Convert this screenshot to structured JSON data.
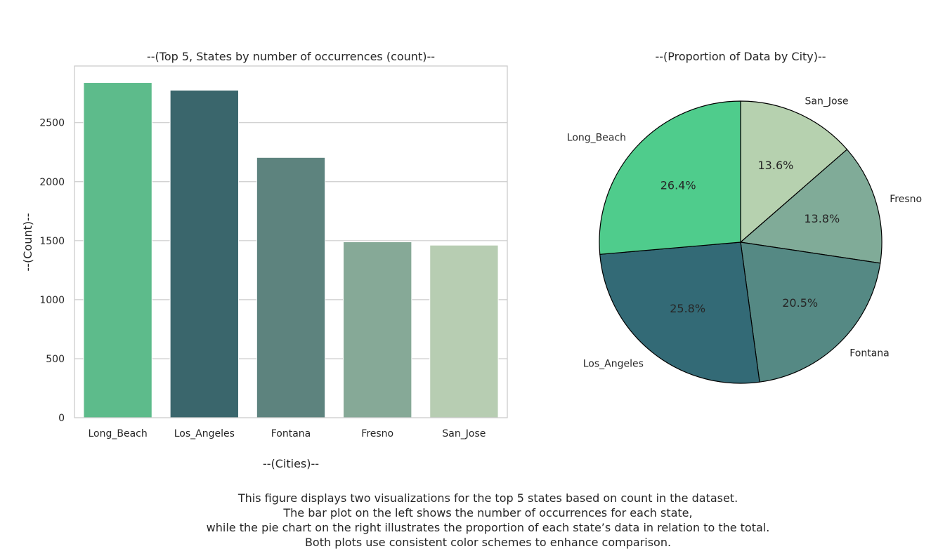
{
  "chart_data": [
    {
      "type": "bar",
      "title": "--(Top 5, States by number of occurrences (count)--",
      "xlabel": "--(Cities)--",
      "ylabel": "--(Count)--",
      "categories": [
        "Long_Beach",
        "Los_Angeles",
        "Fontana",
        "Fresno",
        "San_Jose"
      ],
      "values": [
        2840,
        2775,
        2205,
        1490,
        1462
      ],
      "colors": [
        "#5dbb8b",
        "#3a666c",
        "#5d837e",
        "#86a997",
        "#b7cdb2"
      ],
      "ylim": [
        0,
        2980
      ],
      "yticks": [
        0,
        500,
        1000,
        1500,
        2000,
        2500
      ],
      "grid": true
    },
    {
      "type": "pie",
      "title": "--(Proportion of Data by City)--",
      "labels": [
        "San_Jose",
        "Fresno",
        "Fontana",
        "Los_Angeles",
        "Long_Beach"
      ],
      "values": [
        13.6,
        13.8,
        20.5,
        25.8,
        26.4
      ],
      "pct_labels": [
        "13.6%",
        "13.8%",
        "20.5%",
        "25.8%",
        "26.4%"
      ],
      "colors": [
        "#b6d1af",
        "#80ab98",
        "#558984",
        "#336a76",
        "#4fcc8c"
      ]
    }
  ],
  "caption": {
    "lines": [
      "This figure displays two visualizations for the top 5 states based on count in the dataset.",
      "The bar plot on the left shows the number of occurrences for each state,",
      "while the pie chart on the right illustrates the proportion of each state’s data in relation to the total.",
      "Both plots use consistent color schemes to enhance comparison."
    ]
  }
}
